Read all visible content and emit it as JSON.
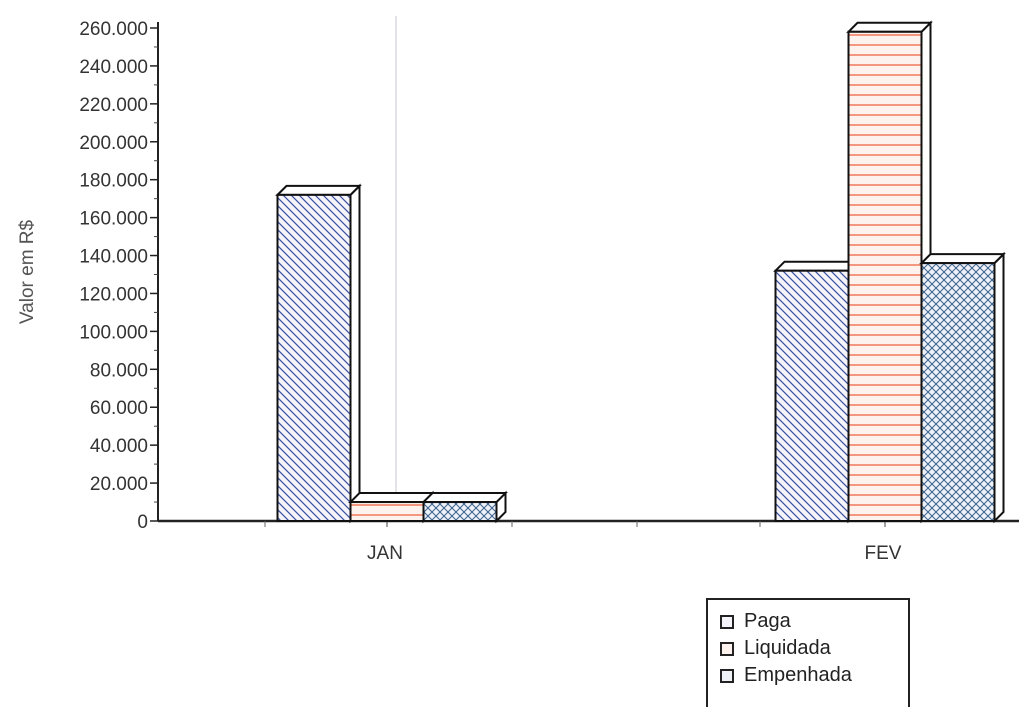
{
  "chart_data": {
    "type": "bar",
    "categories": [
      "JAN",
      "FEV"
    ],
    "series": [
      {
        "name": "Paga",
        "values": [
          172000,
          132000
        ],
        "color": "#3a4fa0",
        "pattern": "diagonal"
      },
      {
        "name": "Liquidada",
        "values": [
          10000,
          258000
        ],
        "color": "#f07050",
        "pattern": "horizontal"
      },
      {
        "name": "Empenhada",
        "values": [
          10000,
          136000
        ],
        "color": "#3a6090",
        "pattern": "crosshatch"
      }
    ],
    "ylabel": "Valor em R$",
    "ylim": [
      0,
      260000
    ],
    "yticks": [
      "0",
      "20.000",
      "40.000",
      "60.000",
      "80.000",
      "100.000",
      "120.000",
      "140.000",
      "160.000",
      "180.000",
      "200.000",
      "220.000",
      "240.000",
      "260.000"
    ],
    "legend_position": "bottom-right",
    "grid": false
  }
}
